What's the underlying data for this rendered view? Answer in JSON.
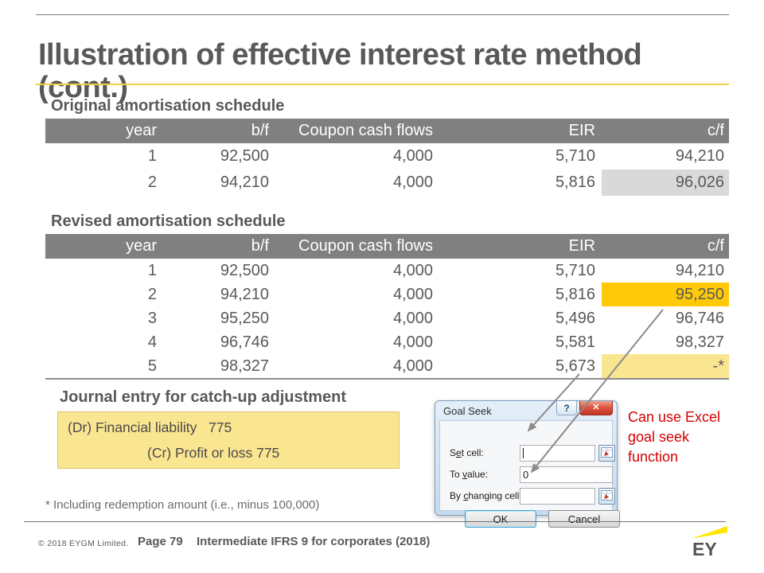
{
  "slide_title": "Illustration of effective interest rate method (cont.)",
  "sections": {
    "original": "Original amortisation schedule",
    "revised": "Revised amortisation schedule",
    "journal": "Journal entry for catch-up adjustment"
  },
  "tables": {
    "original": {
      "columns": [
        "year",
        "b/f",
        "Coupon cash flows",
        "EIR",
        "c/f"
      ],
      "rows": [
        [
          "1",
          "92,500",
          "4,000",
          "5,710",
          "94,210"
        ],
        [
          "2",
          "94,210",
          "4,000",
          "5,816",
          "96,026"
        ]
      ],
      "highlight_cells": [
        {
          "row": 1,
          "col": 4,
          "style": "gray"
        }
      ]
    },
    "revised": {
      "columns": [
        "year",
        "b/f",
        "Coupon cash flows",
        "EIR",
        "c/f"
      ],
      "rows": [
        [
          "1",
          "92,500",
          "4,000",
          "5,710",
          "94,210"
        ],
        [
          "2",
          "94,210",
          "4,000",
          "5,816",
          "95,250"
        ],
        [
          "3",
          "95,250",
          "4,000",
          "5,496",
          "96,746"
        ],
        [
          "4",
          "96,746",
          "4,000",
          "5,581",
          "98,327"
        ],
        [
          "5",
          "98,327",
          "4,000",
          "5,673",
          "-*"
        ]
      ],
      "highlight_cells": [
        {
          "row": 1,
          "col": 4,
          "style": "gold"
        },
        {
          "row": 4,
          "col": 4,
          "style": "lightyellow"
        }
      ]
    }
  },
  "journal_entry": {
    "debit_line": "(Dr) Financial liability   775",
    "credit_line": "(Cr) Profit or loss 775"
  },
  "goal_seek": {
    "title": "Goal Seek",
    "help_glyph": "?",
    "close_glyph": "✕",
    "fields": {
      "set_cell": {
        "pre": "S",
        "accel": "e",
        "post": "t cell:",
        "value": ""
      },
      "to_value": {
        "pre": "To ",
        "accel": "v",
        "post": "alue:",
        "value": "0"
      },
      "by_changing": {
        "pre": "By ",
        "accel": "c",
        "post": "hanging cell:",
        "value": ""
      }
    },
    "ok_label": "OK",
    "cancel_label": "Cancel"
  },
  "annotation": {
    "text": "Can use Excel goal seek function"
  },
  "footnote": "* Including redemption amount (i.e., minus 100,000)",
  "footer": {
    "copyright": "© 2018 EYGM  Limited.",
    "page": "Page 79",
    "course": "Intermediate IFRS 9 for corporates (2018)",
    "logo_text": "EY"
  },
  "colors": {
    "header_gray": "#808080",
    "text_gray": "#595959",
    "highlight_gold": "#FFC907",
    "highlight_lightyellow": "#FAE591",
    "highlight_gray": "#D9D9D9",
    "journal_bg": "#FAE591",
    "title_underline_yellow": "#EFCE45",
    "annotation_red": "#D60000",
    "ey_yellow": "#FFE600"
  }
}
